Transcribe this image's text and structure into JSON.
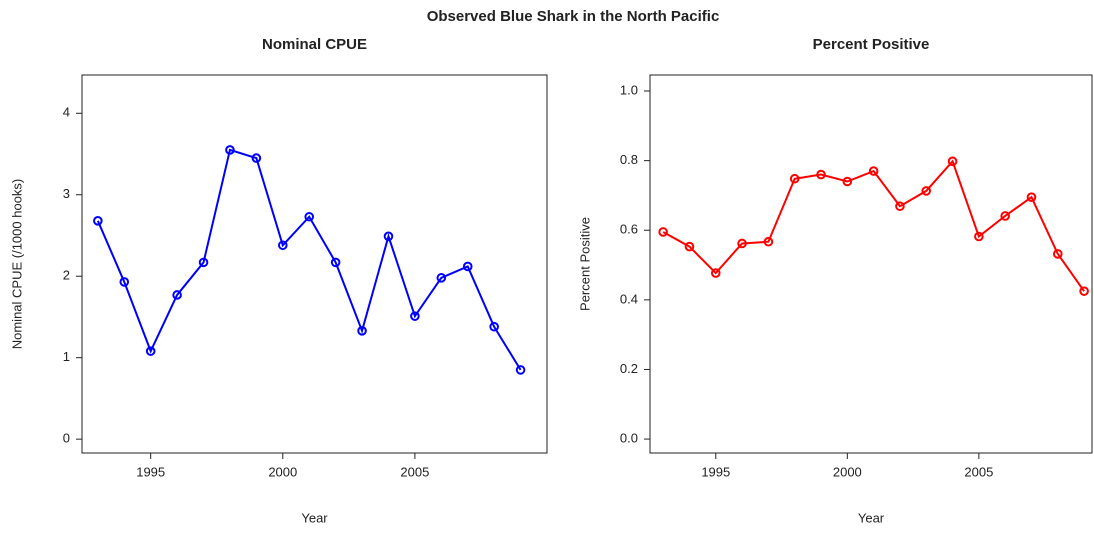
{
  "title": "Observed Blue Shark in the North Pacific",
  "chart_data": [
    {
      "type": "line",
      "title": "Nominal CPUE",
      "x_label": "Year",
      "y_label": "Nominal CPUE (/1000 hooks)",
      "x": [
        1993,
        1994,
        1995,
        1996,
        1997,
        1998,
        1999,
        2000,
        2001,
        2002,
        2003,
        2004,
        2005,
        2006,
        2007,
        2008,
        2009
      ],
      "series": [
        {
          "color": "#0000ff",
          "values": [
            2.68,
            1.93,
            1.08,
            1.77,
            2.17,
            3.55,
            3.45,
            2.38,
            2.73,
            2.17,
            1.33,
            2.49,
            1.51,
            1.98,
            2.12,
            1.38,
            0.85
          ]
        }
      ],
      "xlim": [
        1992.4,
        2010.0
      ],
      "xticks": [
        1995,
        2000,
        2005
      ],
      "ylim": [
        -0.17,
        4.47
      ],
      "yticks": [
        0,
        1,
        2,
        3,
        4
      ]
    },
    {
      "type": "line",
      "title": "Percent Positive",
      "x_label": "Year",
      "y_label": "Percent Positive",
      "x": [
        1993,
        1994,
        1995,
        1996,
        1997,
        1998,
        1999,
        2000,
        2001,
        2002,
        2003,
        2004,
        2005,
        2006,
        2007,
        2008,
        2009
      ],
      "series": [
        {
          "color": "#ff0000",
          "values": [
            0.595,
            0.553,
            0.477,
            0.562,
            0.567,
            0.748,
            0.76,
            0.74,
            0.77,
            0.669,
            0.713,
            0.798,
            0.582,
            0.641,
            0.695,
            0.532,
            0.425
          ]
        }
      ],
      "xlim": [
        1992.5,
        2009.3
      ],
      "xticks": [
        1995,
        2000,
        2005
      ],
      "ylim": [
        -0.04,
        1.046
      ],
      "yticks": [
        {
          "value": 0,
          "label": "0.0"
        },
        0.2,
        0.4,
        0.6,
        0.8,
        {
          "value": 1,
          "label": "1.0"
        }
      ]
    }
  ]
}
